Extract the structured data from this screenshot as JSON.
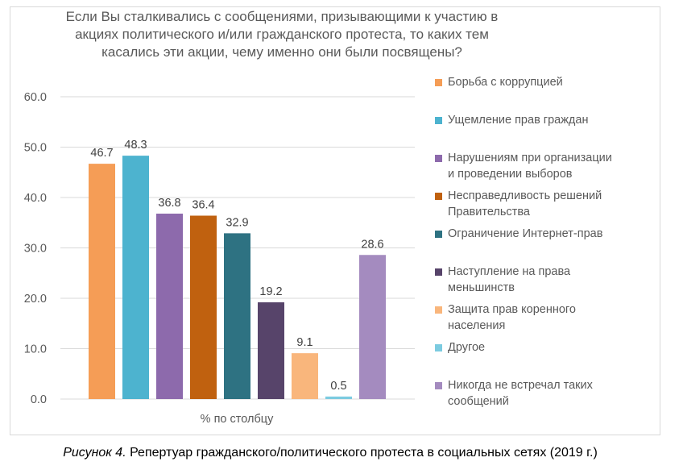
{
  "chart_data": {
    "type": "bar",
    "title": "Если Вы сталкивались с сообщениями, призывающими к участию в акциях политического и/или гражданского протеста, то каких тем касались эти акции, чему именно они были посвящены?",
    "xlabel": "% по столбцу",
    "ylabel": "",
    "ylim": [
      0,
      60
    ],
    "yticks": [
      "0.0",
      "10.0",
      "20.0",
      "30.0",
      "40.0",
      "50.0",
      "60.0"
    ],
    "grid": true,
    "legend_position": "right",
    "series": [
      {
        "name": "Борьба с коррупцией",
        "value": 46.7,
        "label": "46.7",
        "color": "#f59d56"
      },
      {
        "name": "Ущемление прав граждан",
        "value": 48.3,
        "label": "48.3",
        "color": "#4db3cf"
      },
      {
        "name": "Нарушениям при организации и проведении выборов",
        "value": 36.8,
        "label": "36.8",
        "color": "#8d6aac"
      },
      {
        "name": "Несправедливость решений Правительства",
        "value": 36.4,
        "label": "36.4",
        "color": "#c0610f"
      },
      {
        "name": "Ограничение Интернет-прав",
        "value": 32.9,
        "label": "32.9",
        "color": "#2e7282"
      },
      {
        "name": "Наступление на права меньшинств",
        "value": 19.2,
        "label": "19.2",
        "color": "#57446a"
      },
      {
        "name": "Защита прав коренного населения",
        "value": 9.1,
        "label": "9.1",
        "color": "#f9b67c"
      },
      {
        "name": "Другое",
        "value": 0.5,
        "label": "0.5",
        "color": "#7ccbe0"
      },
      {
        "name": "Никогда не встречал таких сообщений",
        "value": 28.6,
        "label": "28.6",
        "color": "#a48bbf"
      }
    ]
  },
  "legend_lines": [
    [
      "Борьба с коррупцией"
    ],
    [
      "Ущемление прав граждан"
    ],
    [
      "Нарушениям при организации",
      "и проведении выборов"
    ],
    [
      "Несправедливость решений",
      "Правительства"
    ],
    [
      "Ограничение Интернет-прав"
    ],
    [
      "Наступление на права",
      "меньшинств"
    ],
    [
      "Защита прав коренного",
      "населения"
    ],
    [
      "Другое"
    ],
    [
      "Никогда не встречал таких",
      "сообщений"
    ]
  ],
  "caption": {
    "prefix": "Рисунок 4.",
    "text": " Репертуар гражданского/политического протеста в социальных сетях (2019 г.)"
  }
}
